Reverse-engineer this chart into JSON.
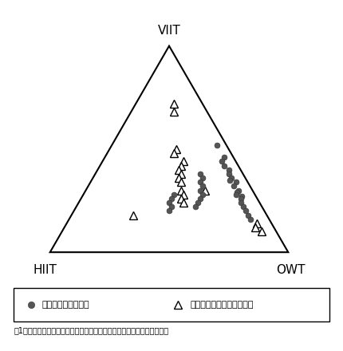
{
  "title": "図1　モジュール化レベルが最も低い品目における貿易構造の推移の比較",
  "legend_text1": "日本と東アジア諸国",
  "legend_text2": "日本以外の東アジア諸国間",
  "background_color": "#ffffff",
  "dot_color": "#555555",
  "dot_points": [
    [
      0.52,
      0.04,
      0.44
    ],
    [
      0.46,
      0.04,
      0.5
    ],
    [
      0.44,
      0.06,
      0.5
    ],
    [
      0.42,
      0.06,
      0.52
    ],
    [
      0.4,
      0.05,
      0.55
    ],
    [
      0.38,
      0.06,
      0.56
    ],
    [
      0.36,
      0.06,
      0.58
    ],
    [
      0.35,
      0.07,
      0.58
    ],
    [
      0.34,
      0.05,
      0.61
    ],
    [
      0.32,
      0.07,
      0.61
    ],
    [
      0.3,
      0.06,
      0.64
    ],
    [
      0.29,
      0.07,
      0.64
    ],
    [
      0.28,
      0.08,
      0.64
    ],
    [
      0.27,
      0.06,
      0.67
    ],
    [
      0.26,
      0.07,
      0.67
    ],
    [
      0.24,
      0.08,
      0.68
    ],
    [
      0.22,
      0.08,
      0.7
    ],
    [
      0.2,
      0.08,
      0.72
    ],
    [
      0.18,
      0.08,
      0.74
    ],
    [
      0.16,
      0.08,
      0.76
    ],
    [
      0.38,
      0.18,
      0.44
    ],
    [
      0.36,
      0.18,
      0.46
    ],
    [
      0.34,
      0.2,
      0.46
    ],
    [
      0.32,
      0.2,
      0.48
    ],
    [
      0.3,
      0.22,
      0.48
    ],
    [
      0.28,
      0.22,
      0.5
    ],
    [
      0.26,
      0.24,
      0.5
    ],
    [
      0.24,
      0.26,
      0.5
    ],
    [
      0.22,
      0.28,
      0.5
    ],
    [
      0.28,
      0.34,
      0.38
    ],
    [
      0.26,
      0.36,
      0.38
    ],
    [
      0.24,
      0.38,
      0.38
    ],
    [
      0.22,
      0.38,
      0.4
    ],
    [
      0.2,
      0.4,
      0.4
    ]
  ],
  "triangle_points": [
    [
      0.72,
      0.12,
      0.16
    ],
    [
      0.68,
      0.14,
      0.18
    ],
    [
      0.5,
      0.22,
      0.28
    ],
    [
      0.48,
      0.24,
      0.28
    ],
    [
      0.44,
      0.22,
      0.34
    ],
    [
      0.42,
      0.24,
      0.34
    ],
    [
      0.4,
      0.26,
      0.34
    ],
    [
      0.38,
      0.26,
      0.36
    ],
    [
      0.36,
      0.28,
      0.36
    ],
    [
      0.34,
      0.28,
      0.38
    ],
    [
      0.3,
      0.3,
      0.4
    ],
    [
      0.28,
      0.3,
      0.42
    ],
    [
      0.26,
      0.32,
      0.42
    ],
    [
      0.24,
      0.32,
      0.44
    ],
    [
      0.3,
      0.2,
      0.5
    ],
    [
      0.14,
      0.06,
      0.8
    ],
    [
      0.12,
      0.08,
      0.8
    ],
    [
      0.1,
      0.06,
      0.84
    ],
    [
      0.18,
      0.56,
      0.26
    ]
  ]
}
